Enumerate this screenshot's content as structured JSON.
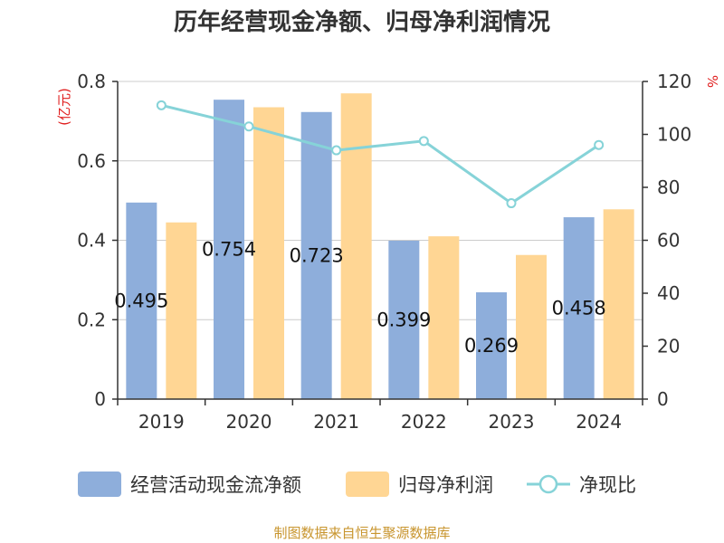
{
  "title": "历年经营现金净额、归母净利润情况",
  "source": "制图数据来自恒生聚源数据库",
  "colors": {
    "cash": "#8eaedb",
    "profit": "#ffd694",
    "ratio": "#86d3d8",
    "unit": "#e01e1e",
    "source": "#c8952e"
  },
  "chart_data": {
    "type": "bar",
    "categories": [
      "2019",
      "2020",
      "2021",
      "2022",
      "2023",
      "2024"
    ],
    "left_axis": {
      "unit": "(亿元)",
      "ylim": [
        0,
        0.8
      ],
      "ticks": [
        "0",
        "0.2",
        "0.4",
        "0.6",
        "0.8"
      ]
    },
    "right_axis": {
      "unit": "%",
      "ylim": [
        0,
        120
      ],
      "ticks": [
        "0",
        "20",
        "40",
        "60",
        "80",
        "100",
        "120"
      ]
    },
    "grid": true,
    "legend_position": "bottom",
    "series": [
      {
        "name": "经营活动现金流净额",
        "type": "bar",
        "axis": "left",
        "values": [
          0.495,
          0.754,
          0.723,
          0.399,
          0.269,
          0.458
        ],
        "labels": [
          "0.495",
          "0.754",
          "0.723",
          "0.399",
          "0.269",
          "0.458"
        ]
      },
      {
        "name": "归母净利润",
        "type": "bar",
        "axis": "left",
        "values": [
          0.445,
          0.735,
          0.77,
          0.41,
          0.363,
          0.478
        ]
      },
      {
        "name": "净现比",
        "type": "line",
        "axis": "right",
        "values": [
          111,
          103,
          94,
          97.5,
          74,
          96
        ]
      }
    ]
  }
}
